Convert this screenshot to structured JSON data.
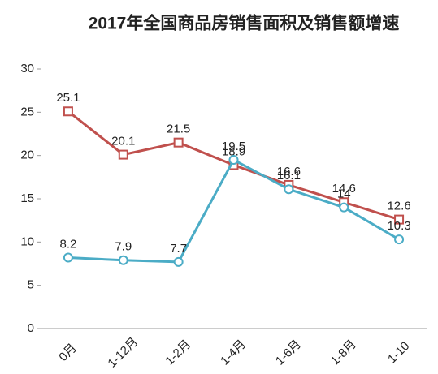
{
  "chart_data": {
    "type": "line",
    "title": "2017年全国商品房销售面积及销售额增速",
    "categories": [
      "0月",
      "1-12月",
      "1-2月",
      "1-4月",
      "1-6月",
      "1-8月",
      "1-10"
    ],
    "series": [
      {
        "color": "#c0504d",
        "marker": "square",
        "values": [
          25.1,
          20.1,
          21.5,
          18.9,
          16.6,
          14.6,
          12.6
        ]
      },
      {
        "color": "#4bacc6",
        "marker": "circle",
        "values": [
          8.2,
          7.9,
          7.7,
          19.5,
          16.1,
          14.0,
          10.3
        ]
      }
    ],
    "ylim": [
      0,
      30
    ],
    "yticks": [
      0,
      5,
      10,
      15,
      20,
      25,
      30
    ],
    "grid": false
  }
}
